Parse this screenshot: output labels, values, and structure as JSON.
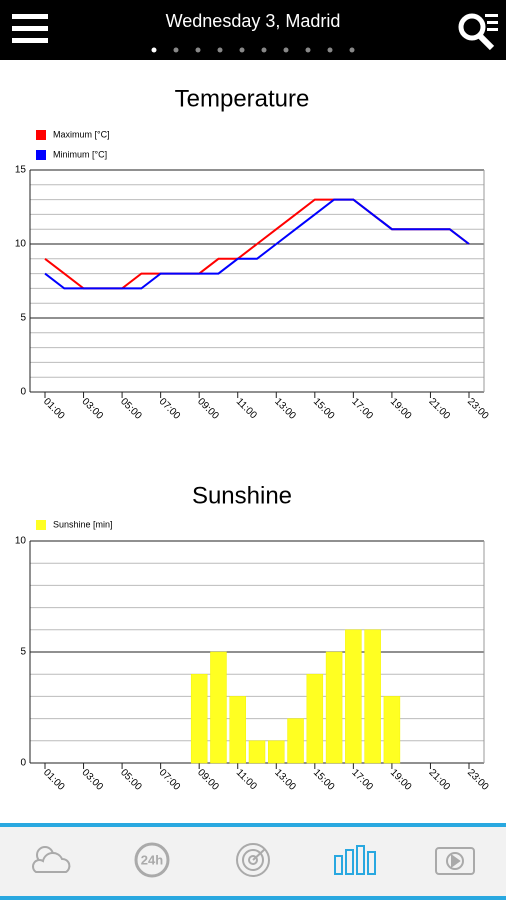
{
  "header": {
    "title": "Wednesday 3, Madrid"
  },
  "chart_data": [
    {
      "type": "line",
      "title": "Temperature",
      "categories": [
        "01:00",
        null,
        "03:00",
        null,
        "05:00",
        null,
        "07:00",
        null,
        "09:00",
        null,
        "11:00",
        null,
        "13:00",
        null,
        "15:00",
        null,
        "17:00",
        null,
        "19:00",
        null,
        "21:00",
        null,
        "23:00"
      ],
      "series": [
        {
          "name": "Maximum [°C]",
          "color": "#ff0000",
          "values": [
            9,
            8,
            7,
            7,
            7,
            8,
            8,
            8,
            8,
            9,
            9,
            10,
            11,
            12,
            13,
            13,
            13,
            12,
            11,
            11,
            11,
            11,
            10
          ]
        },
        {
          "name": "Minimum [°C]",
          "color": "#0000ff",
          "values": [
            8,
            7,
            7,
            7,
            7,
            7,
            8,
            8,
            8,
            8,
            9,
            9,
            10,
            11,
            12,
            13,
            13,
            12,
            11,
            11,
            11,
            11,
            10
          ]
        }
      ],
      "ylim": [
        0,
        15
      ],
      "yticks": [
        0,
        5,
        10,
        15
      ],
      "minor_yticks": [
        1,
        2,
        3,
        4,
        6,
        7,
        8,
        9,
        11,
        12,
        13,
        14
      ],
      "grid": true
    },
    {
      "type": "bar",
      "title": "Sunshine",
      "categories": [
        "01:00",
        null,
        "03:00",
        null,
        "05:00",
        null,
        "07:00",
        null,
        "09:00",
        null,
        "11:00",
        null,
        "13:00",
        null,
        "15:00",
        null,
        "17:00",
        null,
        "19:00",
        null,
        "21:00",
        null,
        "23:00"
      ],
      "series": [
        {
          "name": "Sunshine [min]",
          "color": "#ffff22",
          "values": [
            0,
            0,
            0,
            0,
            0,
            0,
            0,
            0,
            4,
            5,
            3,
            1,
            1,
            2,
            4,
            5,
            6,
            6,
            3,
            0,
            0,
            0,
            0
          ]
        }
      ],
      "ylim": [
        0,
        10
      ],
      "yticks": [
        0,
        5,
        10
      ],
      "minor_yticks": [
        1,
        2,
        3,
        4,
        6,
        7,
        8,
        9
      ],
      "grid": true
    }
  ],
  "nav": {
    "clock_label": "24h"
  }
}
